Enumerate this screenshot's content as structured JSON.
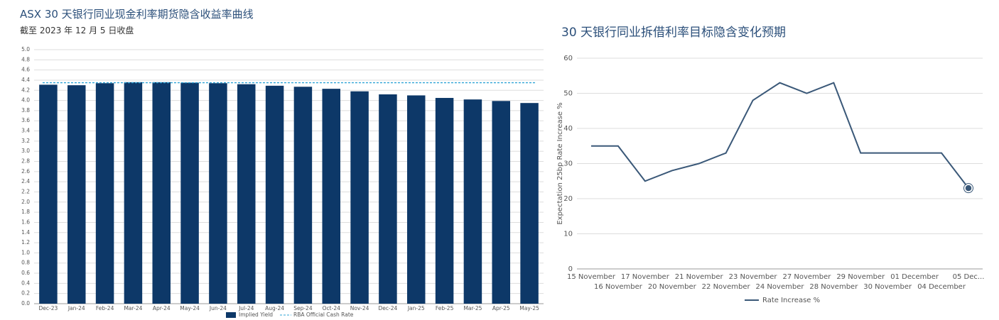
{
  "chart_data": [
    {
      "type": "bar",
      "title": "ASX 30 天银行同业现金利率期货隐含收益率曲线",
      "subtitle": "截至 2023 年 12 月 5 日收盘",
      "categories": [
        "Dec-23",
        "Jan-24",
        "Feb-24",
        "Mar-24",
        "Apr-24",
        "May-24",
        "Jun-24",
        "Jul-24",
        "Aug-24",
        "Sep-24",
        "Oct-24",
        "Nov-24",
        "Dec-24",
        "Jan-25",
        "Feb-25",
        "Mar-25",
        "Apr-25",
        "May-25"
      ],
      "series": [
        {
          "name": "Implied Yield",
          "color": "#0d3868",
          "values": [
            4.31,
            4.3,
            4.34,
            4.36,
            4.36,
            4.35,
            4.34,
            4.32,
            4.29,
            4.27,
            4.23,
            4.18,
            4.12,
            4.1,
            4.05,
            4.02,
            3.99,
            3.95
          ]
        }
      ],
      "reference_lines": [
        {
          "name": "RBA Official Cash Rate",
          "value": 4.35,
          "color": "#2ea3d6"
        }
      ],
      "ylim": [
        0,
        5
      ],
      "yticks": [
        {
          "value": 0,
          "label": "0.0"
        },
        0.2,
        0.4,
        0.6,
        0.8,
        {
          "value": 1,
          "label": "1.0"
        },
        1.2,
        1.4,
        1.6,
        1.8,
        {
          "value": 2,
          "label": "2.0"
        },
        2.2,
        2.4,
        2.6,
        2.8,
        {
          "value": 3,
          "label": "3.0"
        },
        3.2,
        3.4,
        3.6,
        3.8,
        {
          "value": 4,
          "label": "4.0"
        },
        4.2,
        4.4,
        4.6,
        4.8,
        {
          "value": 5,
          "label": "5.0"
        }
      ],
      "grid": true
    },
    {
      "type": "line",
      "title": "30 天银行同业拆借利率目标隐含变化预期",
      "y_label": "Expectation 25bp Rate Increase %",
      "categories": [
        "15 November",
        "16 November",
        "17 November",
        "20 November",
        "21 November",
        "22 November",
        "23 November",
        "24 November",
        "27 November",
        "28 November",
        "29 November",
        "30 November",
        "01 December",
        "04 December",
        "05 Dec..."
      ],
      "series": [
        {
          "name": "Rate Increase %",
          "color": "#3a5878",
          "values": [
            35,
            35,
            25,
            28,
            30,
            33,
            48,
            53,
            50,
            53,
            33,
            33,
            33,
            33,
            23
          ]
        }
      ],
      "ylim": [
        0,
        60
      ],
      "yticks": [
        0,
        10,
        20,
        30,
        40,
        50,
        60
      ],
      "grid": true
    }
  ]
}
